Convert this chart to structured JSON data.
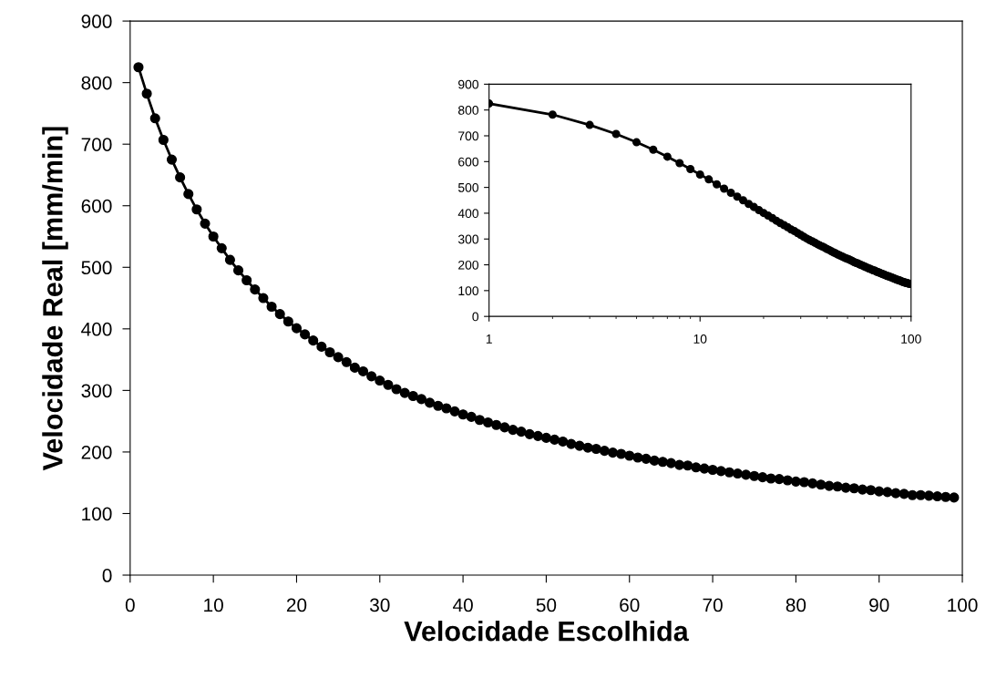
{
  "chart_data": [
    {
      "type": "line",
      "xlabel": "Velocidade Escolhida",
      "ylabel": "Velocidade Real [mm/min]",
      "marker": "circle",
      "line_style": "solid",
      "grid": false,
      "legend": false,
      "x": [
        1,
        2,
        3,
        4,
        5,
        6,
        7,
        8,
        9,
        10,
        11,
        12,
        13,
        14,
        15,
        16,
        17,
        18,
        19,
        20,
        21,
        22,
        23,
        24,
        25,
        26,
        27,
        28,
        29,
        30,
        31,
        32,
        33,
        34,
        35,
        36,
        37,
        38,
        39,
        40,
        41,
        42,
        43,
        44,
        45,
        46,
        47,
        48,
        49,
        50,
        51,
        52,
        53,
        54,
        55,
        56,
        57,
        58,
        59,
        60,
        61,
        62,
        63,
        64,
        65,
        66,
        67,
        68,
        69,
        70,
        71,
        72,
        73,
        74,
        75,
        76,
        77,
        78,
        79,
        80,
        81,
        82,
        83,
        84,
        85,
        86,
        87,
        88,
        89,
        90,
        91,
        92,
        93,
        94,
        95,
        96,
        97,
        98,
        99
      ],
      "series": [
        {
          "color": "#000000",
          "values": [
            825,
            782,
            742,
            707,
            675,
            646,
            619,
            594,
            571,
            550,
            531,
            512,
            495,
            479,
            464,
            450,
            436,
            424,
            412,
            401,
            391,
            381,
            371,
            362,
            354,
            346,
            337,
            331,
            323,
            316,
            309,
            302,
            296,
            291,
            286,
            280,
            275,
            271,
            266,
            261,
            257,
            252,
            248,
            244,
            240,
            236,
            233,
            229,
            226,
            223,
            220,
            217,
            213,
            210,
            207,
            205,
            202,
            199,
            197,
            194,
            191,
            189,
            186,
            184,
            182,
            179,
            178,
            175,
            173,
            171,
            169,
            167,
            165,
            163,
            161,
            159,
            157,
            156,
            154,
            152,
            151,
            149,
            147,
            145,
            144,
            142,
            141,
            139,
            138,
            136,
            135,
            133,
            132,
            130,
            130,
            129,
            128,
            127,
            126
          ]
        }
      ],
      "xlim": [
        0,
        100
      ],
      "xticks": [
        0,
        10,
        20,
        30,
        40,
        50,
        60,
        70,
        80,
        90,
        100
      ],
      "ylim": [
        0,
        900
      ],
      "yticks": [
        0,
        100,
        200,
        300,
        400,
        500,
        600,
        700,
        800,
        900
      ]
    },
    {
      "type": "line",
      "marker": "circle",
      "line_style": "solid",
      "grid": false,
      "legend": false,
      "log": "x",
      "x": [
        1,
        2,
        3,
        4,
        5,
        6,
        7,
        8,
        9,
        10,
        11,
        12,
        13,
        14,
        15,
        16,
        17,
        18,
        19,
        20,
        21,
        22,
        23,
        24,
        25,
        26,
        27,
        28,
        29,
        30,
        31,
        32,
        33,
        34,
        35,
        36,
        37,
        38,
        39,
        40,
        41,
        42,
        43,
        44,
        45,
        46,
        47,
        48,
        49,
        50,
        51,
        52,
        53,
        54,
        55,
        56,
        57,
        58,
        59,
        60,
        61,
        62,
        63,
        64,
        65,
        66,
        67,
        68,
        69,
        70,
        71,
        72,
        73,
        74,
        75,
        76,
        77,
        78,
        79,
        80,
        81,
        82,
        83,
        84,
        85,
        86,
        87,
        88,
        89,
        90,
        91,
        92,
        93,
        94,
        95,
        96,
        97,
        98,
        99
      ],
      "series": [
        {
          "color": "#000000",
          "values": [
            825,
            782,
            742,
            707,
            675,
            646,
            619,
            594,
            571,
            550,
            531,
            512,
            495,
            479,
            464,
            450,
            436,
            424,
            412,
            401,
            391,
            381,
            371,
            362,
            354,
            346,
            337,
            331,
            323,
            316,
            309,
            302,
            296,
            291,
            286,
            280,
            275,
            271,
            266,
            261,
            257,
            252,
            248,
            244,
            240,
            236,
            233,
            229,
            226,
            223,
            220,
            217,
            213,
            210,
            207,
            205,
            202,
            199,
            197,
            194,
            191,
            189,
            186,
            184,
            182,
            179,
            178,
            175,
            173,
            171,
            169,
            167,
            165,
            163,
            161,
            159,
            157,
            156,
            154,
            152,
            151,
            149,
            147,
            145,
            144,
            142,
            141,
            139,
            138,
            136,
            135,
            133,
            132,
            130,
            130,
            129,
            128,
            127,
            126
          ]
        }
      ],
      "xlim": [
        1,
        100
      ],
      "xticks": [
        1,
        10,
        100
      ],
      "ylim": [
        0,
        900
      ],
      "yticks": [
        0,
        100,
        200,
        300,
        400,
        500,
        600,
        700,
        800,
        900
      ]
    }
  ]
}
